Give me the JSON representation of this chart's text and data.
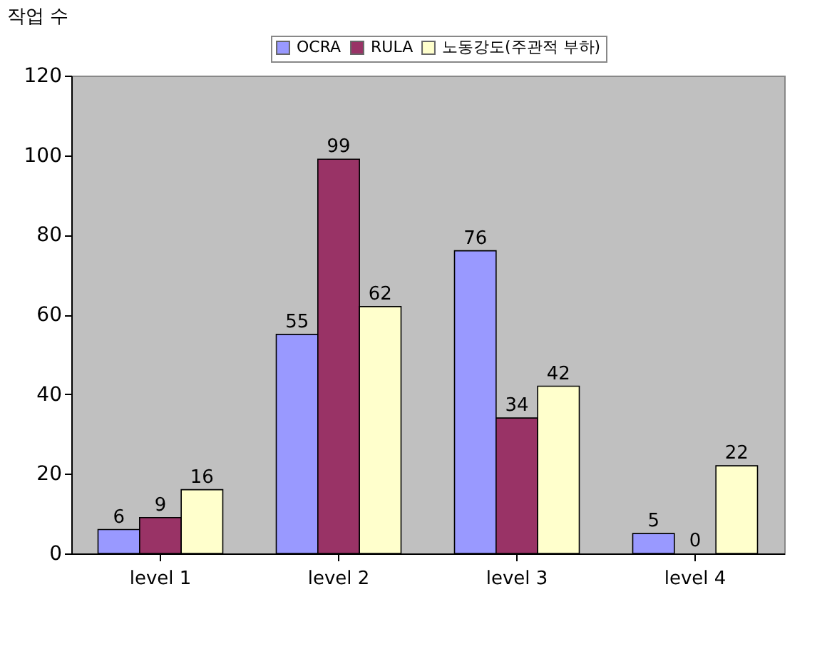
{
  "chart_data": {
    "type": "bar",
    "ylabel": "작업 수",
    "categories": [
      "level 1",
      "level 2",
      "level 3",
      "level 4"
    ],
    "series": [
      {
        "name": "OCRA",
        "color": "#9999ff",
        "values": [
          6,
          55,
          76,
          5
        ]
      },
      {
        "name": "RULA",
        "color": "#993366",
        "values": [
          9,
          99,
          34,
          0
        ]
      },
      {
        "name": "노동강도(주관적 부하)",
        "color": "#ffffcc",
        "values": [
          16,
          62,
          42,
          22
        ]
      }
    ],
    "ylim": [
      0,
      120
    ],
    "yticks": [
      0,
      20,
      40,
      60,
      80,
      100,
      120
    ],
    "data_labels": true,
    "legend": "top",
    "grid": false
  }
}
